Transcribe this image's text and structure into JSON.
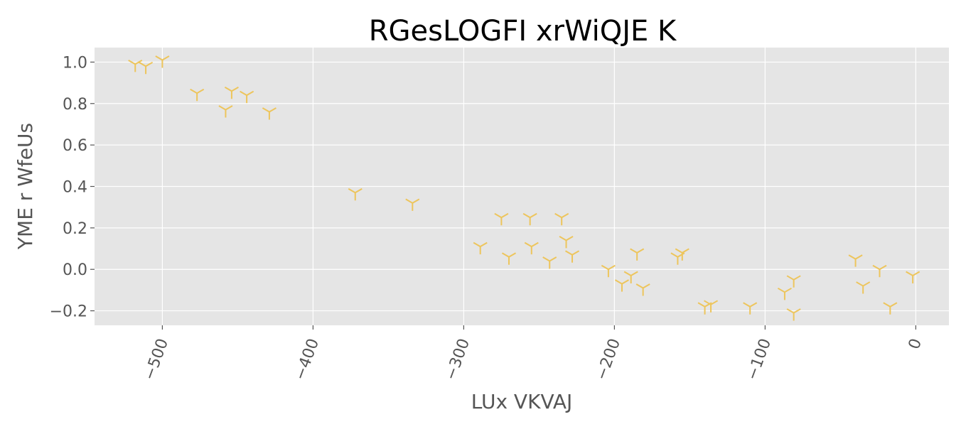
{
  "chart_data": {
    "type": "scatter",
    "title": "RGesLOGFI xrWiQJE K",
    "xlabel": "LUx VKVAJ",
    "ylabel": "YME r WfeUs",
    "xlim": [
      -545,
      22
    ],
    "ylim": [
      -0.27,
      1.07
    ],
    "xticks": [
      -500,
      -400,
      -300,
      -200,
      -100,
      0
    ],
    "xtick_labels": [
      "−500",
      "−400",
      "−300",
      "−200",
      "−100",
      "0"
    ],
    "yticks": [
      -0.2,
      0.0,
      0.2,
      0.4,
      0.6,
      0.8,
      1.0
    ],
    "ytick_labels": [
      "−0.2",
      "0.0",
      "0.2",
      "0.4",
      "0.6",
      "0.8",
      "1.0"
    ],
    "grid": true,
    "marker": "tri_down",
    "marker_color": "#edc55c",
    "background_color": "#e5e5e5",
    "points": [
      {
        "x": -518,
        "y": 0.99
      },
      {
        "x": -511,
        "y": 0.98
      },
      {
        "x": -500,
        "y": 1.01
      },
      {
        "x": -477,
        "y": 0.85
      },
      {
        "x": -458,
        "y": 0.77
      },
      {
        "x": -454,
        "y": 0.86
      },
      {
        "x": -444,
        "y": 0.84
      },
      {
        "x": -429,
        "y": 0.76
      },
      {
        "x": -372,
        "y": 0.37
      },
      {
        "x": -334,
        "y": 0.32
      },
      {
        "x": -289,
        "y": 0.11
      },
      {
        "x": -275,
        "y": 0.25
      },
      {
        "x": -270,
        "y": 0.06
      },
      {
        "x": -256,
        "y": 0.25
      },
      {
        "x": -255,
        "y": 0.11
      },
      {
        "x": -243,
        "y": 0.04
      },
      {
        "x": -235,
        "y": 0.25
      },
      {
        "x": -232,
        "y": 0.14
      },
      {
        "x": -228,
        "y": 0.07
      },
      {
        "x": -204,
        "y": 0.0
      },
      {
        "x": -195,
        "y": -0.07
      },
      {
        "x": -189,
        "y": -0.03
      },
      {
        "x": -185,
        "y": 0.08
      },
      {
        "x": -181,
        "y": -0.09
      },
      {
        "x": -158,
        "y": 0.06
      },
      {
        "x": -155,
        "y": 0.08
      },
      {
        "x": -140,
        "y": -0.18
      },
      {
        "x": -136,
        "y": -0.17
      },
      {
        "x": -110,
        "y": -0.18
      },
      {
        "x": -87,
        "y": -0.11
      },
      {
        "x": -81,
        "y": -0.05
      },
      {
        "x": -81,
        "y": -0.21
      },
      {
        "x": -40,
        "y": 0.05
      },
      {
        "x": -35,
        "y": -0.08
      },
      {
        "x": -24,
        "y": 0.0
      },
      {
        "x": -17,
        "y": -0.18
      },
      {
        "x": -2,
        "y": -0.03
      }
    ]
  }
}
